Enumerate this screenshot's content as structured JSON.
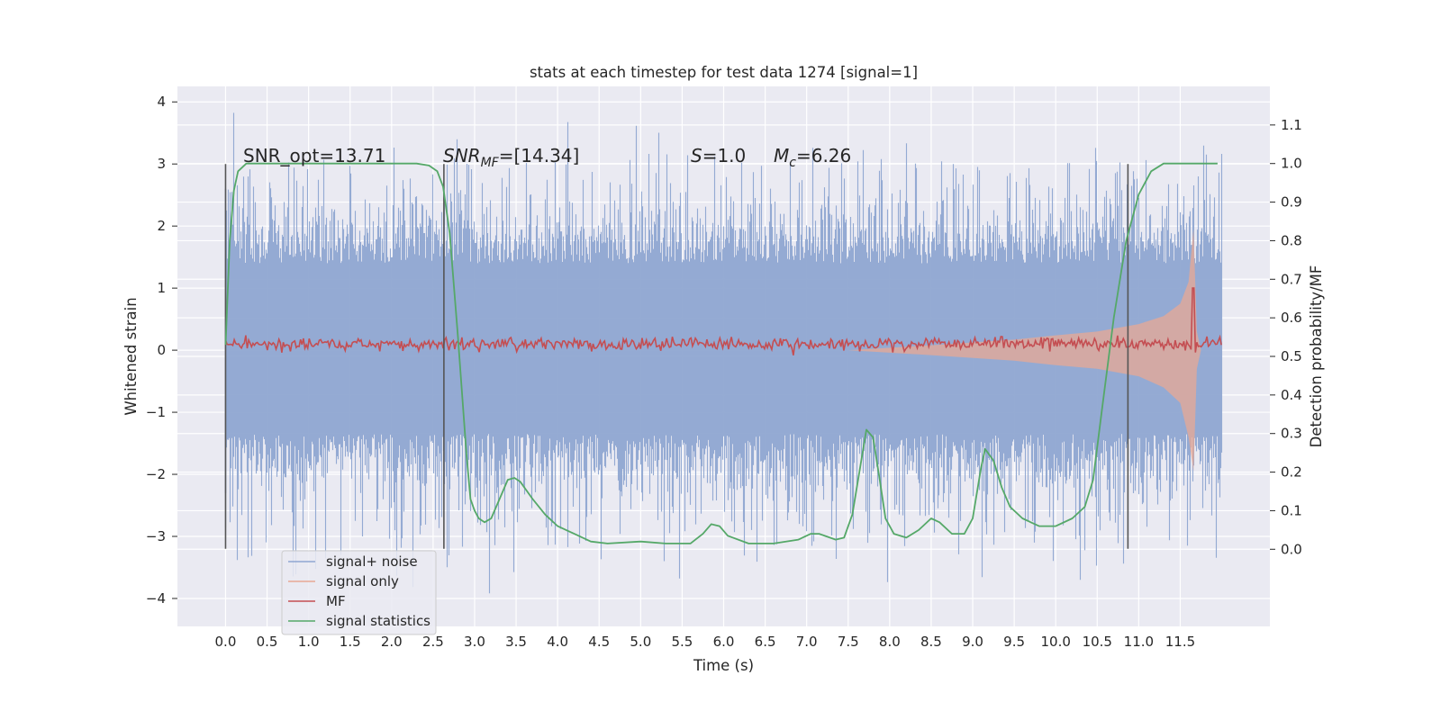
{
  "chart_data": {
    "type": "line",
    "title": "stats at each timestep for test data 1274 [signal=1]",
    "xlabel": "Time (s)",
    "ylabel": "Whitened strain",
    "ylabel_right": "Detection probability/MF",
    "xlim": [
      -0.58,
      12.58
    ],
    "ylim": [
      -4.45,
      4.25
    ],
    "ylim_right": [
      -0.2,
      1.2
    ],
    "x_ticks": [
      "0.0",
      "0.5",
      "1.0",
      "1.5",
      "2.0",
      "2.5",
      "3.0",
      "3.5",
      "4.0",
      "4.5",
      "5.0",
      "5.5",
      "6.0",
      "6.5",
      "7.0",
      "7.5",
      "8.0",
      "8.5",
      "9.0",
      "9.5",
      "10.0",
      "10.5",
      "11.0",
      "11.5"
    ],
    "y_ticks": [
      "−4",
      "−3",
      "−2",
      "−1",
      "0",
      "1",
      "2",
      "3",
      "4"
    ],
    "y_ticks_right": [
      "0.0",
      "0.1",
      "0.2",
      "0.3",
      "0.4",
      "0.5",
      "0.6",
      "0.7",
      "0.8",
      "0.9",
      "1.0",
      "1.1"
    ],
    "grid": true,
    "legend_position": "bottom-left",
    "annotations": {
      "snr_opt": "SNR_opt=13.71",
      "snr_mf_base": "SNR",
      "snr_mf_sub": "MF",
      "snr_mf_rest": "=[14.34]",
      "s_var": "S",
      "s_rest": "=1.0",
      "mc_var": "M",
      "mc_sub": "c",
      "mc_rest": "=6.26"
    },
    "vertical_markers_x": [
      0.0,
      2.63,
      10.87
    ],
    "vertical_markers_yrange": [
      -3.2,
      3.0
    ],
    "series": [
      {
        "name": "signal+ noise",
        "color": "#8fa6d1",
        "axis": "left",
        "description_range": [
          -4.0,
          3.85
        ],
        "x_range": [
          0.0,
          12.0
        ]
      },
      {
        "name": "signal only",
        "color": "#e8a894",
        "axis": "left",
        "envelope_start": 7.5,
        "envelope_peak_x": 11.66,
        "envelope_upper": [
          [
            7.5,
            0.0
          ],
          [
            8.5,
            0.08
          ],
          [
            9.5,
            0.17
          ],
          [
            10.0,
            0.24
          ],
          [
            10.5,
            0.3
          ],
          [
            11.0,
            0.42
          ],
          [
            11.3,
            0.55
          ],
          [
            11.5,
            0.75
          ],
          [
            11.6,
            1.1
          ],
          [
            11.66,
            1.95
          ],
          [
            11.7,
            0.3
          ],
          [
            11.75,
            0.0
          ]
        ],
        "envelope_lower": [
          [
            7.5,
            0.0
          ],
          [
            8.5,
            -0.08
          ],
          [
            9.5,
            -0.17
          ],
          [
            10.0,
            -0.24
          ],
          [
            10.5,
            -0.3
          ],
          [
            11.0,
            -0.42
          ],
          [
            11.3,
            -0.6
          ],
          [
            11.5,
            -0.85
          ],
          [
            11.6,
            -1.4
          ],
          [
            11.66,
            -1.95
          ],
          [
            11.7,
            -0.3
          ],
          [
            11.75,
            0.0
          ]
        ]
      },
      {
        "name": "MF",
        "color": "#c44e52",
        "axis": "left",
        "baseline": 0.1,
        "noise_amplitude": 0.1,
        "spike": [
          11.66,
          1.0
        ]
      },
      {
        "name": "signal statistics",
        "color": "#55a868",
        "axis": "right",
        "points": [
          [
            0.0,
            0.53
          ],
          [
            0.05,
            0.8
          ],
          [
            0.1,
            0.93
          ],
          [
            0.15,
            0.98
          ],
          [
            0.25,
            1.0
          ],
          [
            1.0,
            1.0
          ],
          [
            2.0,
            1.0
          ],
          [
            2.3,
            1.0
          ],
          [
            2.45,
            0.995
          ],
          [
            2.55,
            0.98
          ],
          [
            2.62,
            0.94
          ],
          [
            2.7,
            0.82
          ],
          [
            2.8,
            0.55
          ],
          [
            2.9,
            0.25
          ],
          [
            2.95,
            0.13
          ],
          [
            3.0,
            0.1
          ],
          [
            3.05,
            0.08
          ],
          [
            3.12,
            0.07
          ],
          [
            3.2,
            0.08
          ],
          [
            3.3,
            0.13
          ],
          [
            3.4,
            0.18
          ],
          [
            3.48,
            0.185
          ],
          [
            3.55,
            0.175
          ],
          [
            3.7,
            0.13
          ],
          [
            3.85,
            0.09
          ],
          [
            4.0,
            0.06
          ],
          [
            4.2,
            0.04
          ],
          [
            4.4,
            0.02
          ],
          [
            4.6,
            0.015
          ],
          [
            5.0,
            0.02
          ],
          [
            5.3,
            0.015
          ],
          [
            5.6,
            0.015
          ],
          [
            5.75,
            0.04
          ],
          [
            5.85,
            0.065
          ],
          [
            5.95,
            0.06
          ],
          [
            6.05,
            0.035
          ],
          [
            6.3,
            0.015
          ],
          [
            6.6,
            0.015
          ],
          [
            6.9,
            0.025
          ],
          [
            7.05,
            0.04
          ],
          [
            7.15,
            0.04
          ],
          [
            7.35,
            0.025
          ],
          [
            7.45,
            0.03
          ],
          [
            7.55,
            0.09
          ],
          [
            7.65,
            0.22
          ],
          [
            7.72,
            0.31
          ],
          [
            7.8,
            0.29
          ],
          [
            7.88,
            0.18
          ],
          [
            7.95,
            0.08
          ],
          [
            8.05,
            0.04
          ],
          [
            8.2,
            0.03
          ],
          [
            8.35,
            0.05
          ],
          [
            8.5,
            0.08
          ],
          [
            8.6,
            0.07
          ],
          [
            8.75,
            0.04
          ],
          [
            8.9,
            0.04
          ],
          [
            9.0,
            0.08
          ],
          [
            9.1,
            0.21
          ],
          [
            9.15,
            0.26
          ],
          [
            9.25,
            0.23
          ],
          [
            9.35,
            0.16
          ],
          [
            9.45,
            0.11
          ],
          [
            9.6,
            0.08
          ],
          [
            9.8,
            0.06
          ],
          [
            10.0,
            0.06
          ],
          [
            10.2,
            0.08
          ],
          [
            10.35,
            0.11
          ],
          [
            10.45,
            0.18
          ],
          [
            10.55,
            0.35
          ],
          [
            10.7,
            0.6
          ],
          [
            10.85,
            0.8
          ],
          [
            11.0,
            0.92
          ],
          [
            11.15,
            0.98
          ],
          [
            11.3,
            1.0
          ],
          [
            11.6,
            1.0
          ],
          [
            11.95,
            1.0
          ]
        ]
      }
    ]
  }
}
